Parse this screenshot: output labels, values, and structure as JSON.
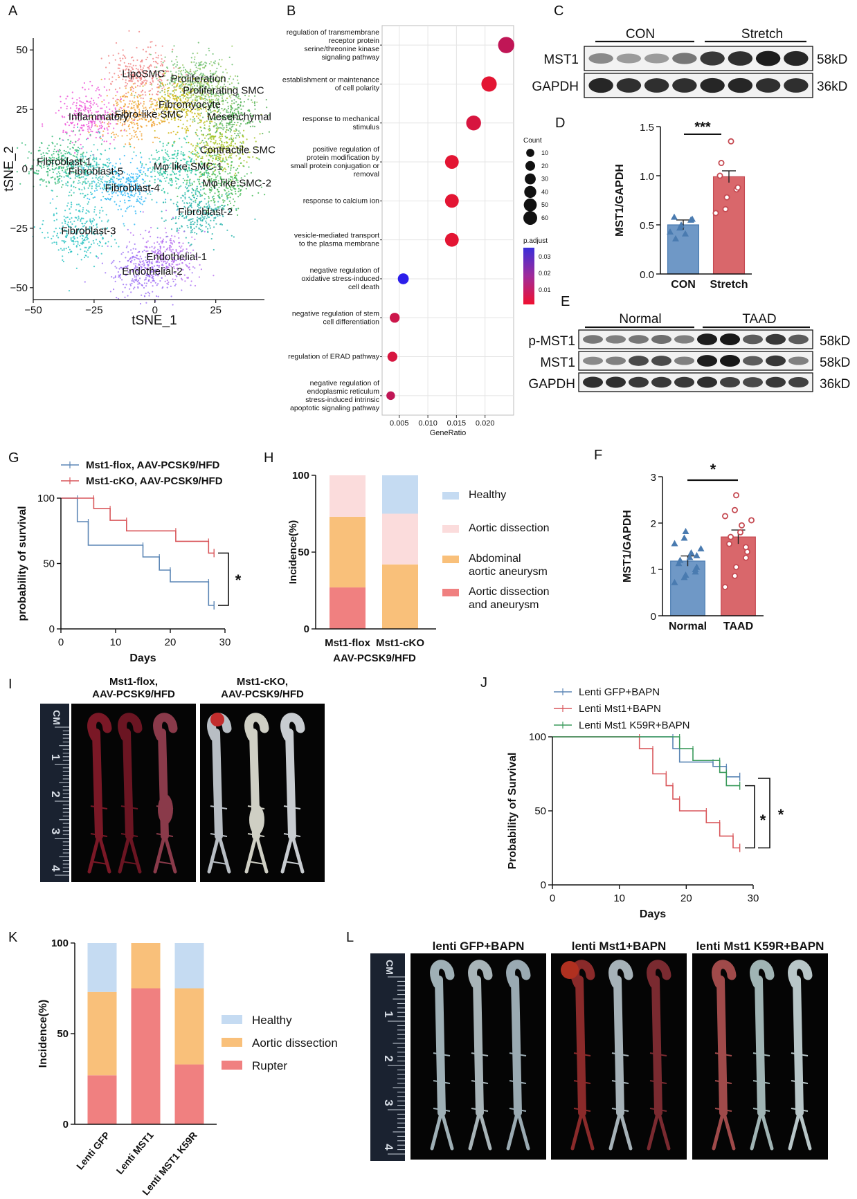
{
  "figure": {
    "panel_labels": {
      "A": "A",
      "B": "B",
      "C": "C",
      "D": "D",
      "E": "E",
      "F": "F",
      "G": "G",
      "H": "H",
      "I": "I",
      "J": "J",
      "K": "K",
      "L": "L"
    },
    "blots": {
      "C": {
        "group1": "CON",
        "group2": "Stretch",
        "rows": [
          {
            "label": "MST1",
            "size": "58kD"
          },
          {
            "label": "GAPDH",
            "size": "36kD"
          }
        ]
      },
      "E": {
        "group1": "Normal",
        "group2": "TAAD",
        "rows": [
          {
            "label": "p-MST1",
            "size": "58kD"
          },
          {
            "label": "MST1",
            "size": "58kD"
          },
          {
            "label": "GAPDH",
            "size": "36kD"
          }
        ]
      }
    },
    "photos": {
      "I": {
        "titles": [
          "Mst1-flox,\nAAV-PCSK9/HFD",
          "Mst1-cKO,\nAAV-PCSK9/HFD"
        ],
        "ruler_label": "CM",
        "ruler_numbers": [
          "1",
          "2",
          "3",
          "4"
        ]
      },
      "L": {
        "titles": [
          "lenti GFP+BAPN",
          "lenti Mst1+BAPN",
          "lenti Mst1 K59R+BAPN"
        ],
        "ruler_label": "CM",
        "ruler_numbers": [
          "1",
          "2",
          "3",
          "4"
        ]
      }
    }
  },
  "chart_data": [
    {
      "id": "A",
      "type": "scatter",
      "xlabel": "tSNE_1",
      "ylabel": "tSNE_2",
      "xlim": [
        -50,
        45
      ],
      "ylim": [
        -55,
        55
      ],
      "xticks": [
        -50,
        -25,
        0,
        25
      ],
      "yticks": [
        50,
        25,
        0,
        -25,
        -50
      ],
      "clusters": [
        {
          "name": "LipoSMC",
          "x": -5,
          "y": 40,
          "color": "#f08080"
        },
        {
          "name": "Proliferation",
          "x": 15,
          "y": 38,
          "color": "#66bb6a"
        },
        {
          "name": "Proliferating SMC",
          "x": 20,
          "y": 33,
          "color": "#9ccc65"
        },
        {
          "name": "Fibromyocyte",
          "x": 10,
          "y": 27,
          "color": "#c8b400"
        },
        {
          "name": "Inflammatory",
          "x": -27,
          "y": 22,
          "color": "#ec4ed6"
        },
        {
          "name": "Fibro-like SMC",
          "x": -8,
          "y": 23,
          "color": "#f0a030"
        },
        {
          "name": "Mesenchymal",
          "x": 30,
          "y": 22,
          "color": "#4caf50"
        },
        {
          "name": "Contractile SMC",
          "x": 27,
          "y": 8,
          "color": "#a3c218"
        },
        {
          "name": "Fibroblast-1",
          "x": -40,
          "y": 3,
          "color": "#2eb872"
        },
        {
          "name": "Mφ like SMC-1",
          "x": 8,
          "y": 1,
          "color": "#26c6a0"
        },
        {
          "name": "Fibroblast-5",
          "x": -27,
          "y": -1,
          "color": "#2ec4b6"
        },
        {
          "name": "Fibroblast-4",
          "x": -12,
          "y": -8,
          "color": "#29b6f6"
        },
        {
          "name": "Mφ like SMC-2",
          "x": 28,
          "y": -6,
          "color": "#3fb950"
        },
        {
          "name": "Fibroblast-2",
          "x": 18,
          "y": -18,
          "color": "#20b2aa"
        },
        {
          "name": "Fibroblast-3",
          "x": -30,
          "y": -26,
          "color": "#22c0c0"
        },
        {
          "name": "Endothelial-1",
          "x": 5,
          "y": -37,
          "color": "#b56cf0"
        },
        {
          "name": "Endothelial-2",
          "x": -5,
          "y": -43,
          "color": "#9a6cf5"
        }
      ]
    },
    {
      "id": "B",
      "type": "scatter",
      "xlabel": "GeneRatio",
      "xlim": [
        0.002,
        0.025
      ],
      "xticks": [
        0.005,
        0.01,
        0.015,
        0.02
      ],
      "tick_labels": [
        "0.005",
        "0.010",
        "0.015",
        "0.020"
      ],
      "terms": [
        {
          "label": "regulation of transmembrane\nreceptor protein\nserine/threonine kinase\nsignaling pathway",
          "ratio": 0.0237,
          "count": 60,
          "padj": 0.008
        },
        {
          "label": "establishment or maintenance\nof cell polarity",
          "ratio": 0.0207,
          "count": 50,
          "padj": 0.002
        },
        {
          "label": "response to mechanical\nstimulus",
          "ratio": 0.018,
          "count": 45,
          "padj": 0.004
        },
        {
          "label": "positive regulation of\nprotein modification by\nsmall protein conjugation or\nremoval",
          "ratio": 0.0142,
          "count": 35,
          "padj": 0.002
        },
        {
          "label": "response to calcium ion",
          "ratio": 0.0142,
          "count": 35,
          "padj": 0.002
        },
        {
          "label": "vesicle-mediated transport\nto the plasma membrane",
          "ratio": 0.0142,
          "count": 35,
          "padj": 0.002
        },
        {
          "label": "negative regulation of\noxidative stress-induced\ncell death",
          "ratio": 0.0057,
          "count": 15,
          "padj": 0.034
        },
        {
          "label": "negative regulation of stem\ncell differentiation",
          "ratio": 0.0042,
          "count": 10,
          "padj": 0.006
        },
        {
          "label": "regulation of ERAD pathway",
          "ratio": 0.0038,
          "count": 10,
          "padj": 0.004
        },
        {
          "label": "negative regulation of\nendoplasmic reticulum\nstress-induced intrinsic\napoptotic signaling pathway",
          "ratio": 0.0035,
          "count": 5,
          "padj": 0.008
        }
      ],
      "legend_count": {
        "title": "Count",
        "values": [
          10,
          20,
          30,
          40,
          50,
          60
        ]
      },
      "legend_padj": {
        "title": "p.adjust",
        "ticks": [
          "0.03",
          "0.02",
          "0.01"
        ]
      }
    },
    {
      "id": "D",
      "type": "bar",
      "categories": [
        "CON",
        "Stretch"
      ],
      "values": [
        0.5,
        0.99
      ],
      "sem": [
        0.05,
        0.06
      ],
      "ylabel": "MST1/GAPDH",
      "ylim": [
        0,
        1.5
      ],
      "yticks": [
        "0.0",
        "0.5",
        "1.0",
        "1.5"
      ],
      "significance": "***",
      "points": [
        [
          0.43,
          0.47,
          0.5,
          0.55,
          0.56,
          0.58,
          0.36,
          0.41
        ],
        [
          0.62,
          0.66,
          0.78,
          0.86,
          0.88,
          1.0,
          1.13,
          1.35
        ]
      ]
    },
    {
      "id": "F",
      "type": "bar",
      "categories": [
        "Normal",
        "TAAD"
      ],
      "values": [
        1.18,
        1.7
      ],
      "sem": [
        0.11,
        0.15
      ],
      "ylabel": "MST1/GAPDH",
      "ylim": [
        0,
        3
      ],
      "yticks": [
        "0",
        "1",
        "2",
        "3"
      ],
      "significance": "*",
      "points": [
        [
          0.72,
          0.83,
          0.88,
          1.0,
          1.05,
          1.13,
          1.2,
          1.26,
          1.36,
          1.45,
          1.56,
          1.68,
          1.82,
          0.95,
          1.3
        ],
        [
          0.62,
          0.86,
          1.05,
          1.25,
          1.38,
          1.55,
          1.7,
          1.8,
          1.95,
          2.06,
          2.15,
          2.28,
          2.6,
          1.48
        ]
      ]
    },
    {
      "id": "G",
      "type": "line",
      "xlabel": "Days",
      "ylabel": "probability of survival",
      "xlim": [
        0,
        30
      ],
      "ylim": [
        0,
        100
      ],
      "xticks": [
        0,
        10,
        20,
        30
      ],
      "yticks": [
        0,
        50,
        100
      ],
      "significance": "*",
      "series": [
        {
          "name": "Mst1-flox, AAV-PCSK9/HFD",
          "color": "#5b86b5",
          "steps": [
            [
              0,
              100
            ],
            [
              3,
              100
            ],
            [
              3,
              82
            ],
            [
              5,
              82
            ],
            [
              5,
              64
            ],
            [
              15,
              64
            ],
            [
              15,
              55
            ],
            [
              18,
              55
            ],
            [
              18,
              45
            ],
            [
              20,
              45
            ],
            [
              20,
              36
            ],
            [
              27,
              36
            ],
            [
              27,
              18
            ],
            [
              28,
              18
            ]
          ]
        },
        {
          "name": "Mst1-cKO, AAV-PCSK9/HFD",
          "color": "#d9575b",
          "steps": [
            [
              0,
              100
            ],
            [
              6,
              100
            ],
            [
              6,
              92
            ],
            [
              9,
              92
            ],
            [
              9,
              83
            ],
            [
              12,
              83
            ],
            [
              12,
              75
            ],
            [
              21,
              75
            ],
            [
              21,
              67
            ],
            [
              27,
              67
            ],
            [
              27,
              58
            ],
            [
              28,
              58
            ]
          ]
        }
      ]
    },
    {
      "id": "H",
      "type": "bar",
      "stacked": true,
      "categories": [
        "Mst1-flox",
        "Mst1-cKO"
      ],
      "xlabel": "AAV-PCSK9/HFD",
      "ylabel": "Incidence(%)",
      "ylim": [
        0,
        100
      ],
      "yticks": [
        "0",
        "50",
        "100"
      ],
      "series": [
        {
          "name": "Aortic dissection\nand aneurysm",
          "color": "#f08080",
          "values": [
            27,
            0
          ]
        },
        {
          "name": "Abdominal\naortic aneurysm",
          "color": "#f9c07a",
          "values": [
            46,
            42
          ]
        },
        {
          "name": "Aortic dissection",
          "color": "#fbdcdc",
          "values": [
            27,
            33
          ]
        },
        {
          "name": "Healthy",
          "color": "#c5dbf2",
          "values": [
            0,
            25
          ]
        }
      ]
    },
    {
      "id": "J",
      "type": "line",
      "xlabel": "Days",
      "ylabel": "Probability of Survival",
      "xlim": [
        0,
        30
      ],
      "ylim": [
        0,
        100
      ],
      "xticks": [
        0,
        10,
        20,
        30
      ],
      "yticks": [
        0,
        50,
        100
      ],
      "significance": [
        "*",
        "*"
      ],
      "series": [
        {
          "name": "Lenti GFP+BAPN",
          "color": "#5b86b5",
          "steps": [
            [
              0,
              100
            ],
            [
              18,
              100
            ],
            [
              18,
              92
            ],
            [
              19,
              92
            ],
            [
              19,
              83
            ],
            [
              24,
              83
            ],
            [
              24,
              80
            ],
            [
              26,
              80
            ],
            [
              26,
              73
            ],
            [
              28,
              73
            ]
          ]
        },
        {
          "name": "Lenti Mst1+BAPN",
          "color": "#d9575b",
          "steps": [
            [
              0,
              100
            ],
            [
              13,
              100
            ],
            [
              13,
              92
            ],
            [
              15,
              92
            ],
            [
              15,
              75
            ],
            [
              17,
              75
            ],
            [
              17,
              67
            ],
            [
              18,
              67
            ],
            [
              18,
              58
            ],
            [
              19,
              58
            ],
            [
              19,
              50
            ],
            [
              23,
              50
            ],
            [
              23,
              42
            ],
            [
              25,
              42
            ],
            [
              25,
              33
            ],
            [
              27,
              33
            ],
            [
              27,
              25
            ],
            [
              28,
              25
            ]
          ]
        },
        {
          "name": "Lenti Mst1 K59R+BAPN",
          "color": "#3a9a5b",
          "steps": [
            [
              0,
              100
            ],
            [
              19,
              100
            ],
            [
              19,
              92
            ],
            [
              21,
              92
            ],
            [
              21,
              84
            ],
            [
              25,
              84
            ],
            [
              25,
              76
            ],
            [
              26,
              76
            ],
            [
              26,
              67
            ],
            [
              28,
              67
            ]
          ]
        }
      ]
    },
    {
      "id": "K",
      "type": "bar",
      "stacked": true,
      "categories": [
        "Lenti GFP",
        "Lenti MST1",
        "Lenti MST1 K59R"
      ],
      "ylabel": "Incidence(%)",
      "ylim": [
        0,
        100
      ],
      "yticks": [
        "0",
        "50",
        "100"
      ],
      "series": [
        {
          "name": "Rupter",
          "color": "#f08080",
          "values": [
            27,
            75,
            33
          ]
        },
        {
          "name": "Aortic dissection",
          "color": "#f9c07a",
          "values": [
            46,
            25,
            42
          ]
        },
        {
          "name": "Healthy",
          "color": "#c5dbf2",
          "values": [
            27,
            0,
            25
          ]
        }
      ]
    }
  ]
}
